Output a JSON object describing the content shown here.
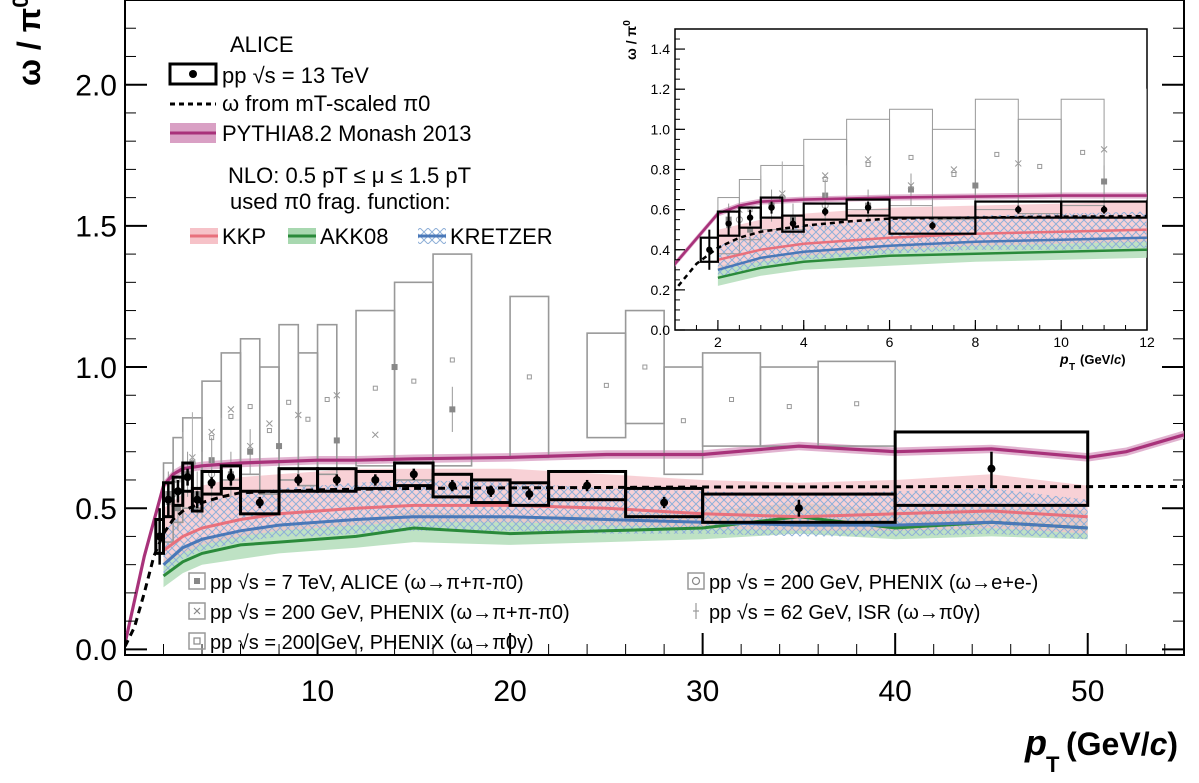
{
  "chart_data": [
    {
      "type": "scatter",
      "title": "",
      "xlabel": "pT (GeV/c)",
      "ylabel": "ω / π0",
      "xlim": [
        0,
        55
      ],
      "ylim": [
        -0.02,
        2.3
      ],
      "x_ticks": [
        "0",
        "10",
        "20",
        "30",
        "40",
        "50"
      ],
      "y_ticks": [
        "0.0",
        "0.5",
        "1.0",
        "1.5",
        "2.0"
      ],
      "experiment": "ALICE",
      "legend_top": {
        "data": "pp √s = 13 TeV",
        "mt_scaled": "ω from mT-scaled π0",
        "pythia": "PYTHIA8.2 Monash 2013",
        "nlo_line1": "NLO: 0.5 pT ≤ μ ≤ 1.5 pT",
        "nlo_line2": "used π0 frag. function:",
        "kkp": "KKP",
        "akk08": "AKK08",
        "kretzer": "KRETZER"
      },
      "legend_bottom": {
        "alice7": "pp √s = 7 TeV, ALICE (ω→π+π-π0)",
        "phenix3pi": "pp √s = 200 GeV, PHENIX (ω→π+π-π0)",
        "phenix_pi0g": "pp √s = 200 GeV, PHENIX (ω→π0γ)",
        "phenix_ee": "pp √s = 200 GeV, PHENIX (ω→e+e-)",
        "isr": "pp √s = 62 GeV, ISR (ω→π0γ)"
      },
      "colors": {
        "data": "#000000",
        "pythia": "#a8327a",
        "pythia_band": "#d9a0c4",
        "kkp": "#e8707c",
        "kkp_band": "#f6c2c8",
        "akk08": "#2a8a3a",
        "akk08_band": "#a8d8b0",
        "kretzer": "#4a78b8",
        "kretzer_hatch": "#8fb0d8",
        "other_data": "#999999",
        "mt_scaled": "#000000"
      },
      "series": [
        {
          "name": "pp √s = 13 TeV",
          "points": [
            {
              "x": 1.8,
              "y": 0.4,
              "xlo": 1.6,
              "xhi": 2.0,
              "ey": 0.1,
              "sy": 0.06
            },
            {
              "x": 2.25,
              "y": 0.53,
              "xlo": 2.0,
              "xhi": 2.5,
              "ey": 0.06,
              "sy": 0.06
            },
            {
              "x": 2.75,
              "y": 0.56,
              "xlo": 2.5,
              "xhi": 3.0,
              "ey": 0.04,
              "sy": 0.05
            },
            {
              "x": 3.25,
              "y": 0.61,
              "xlo": 3.0,
              "xhi": 3.5,
              "ey": 0.03,
              "sy": 0.05
            },
            {
              "x": 3.75,
              "y": 0.53,
              "xlo": 3.5,
              "xhi": 4.0,
              "ey": 0.03,
              "sy": 0.04
            },
            {
              "x": 4.5,
              "y": 0.59,
              "xlo": 4.0,
              "xhi": 5.0,
              "ey": 0.02,
              "sy": 0.04
            },
            {
              "x": 5.5,
              "y": 0.61,
              "xlo": 5.0,
              "xhi": 6.0,
              "ey": 0.03,
              "sy": 0.04
            },
            {
              "x": 7.0,
              "y": 0.52,
              "xlo": 6.0,
              "xhi": 8.0,
              "ey": 0.02,
              "sy": 0.04
            },
            {
              "x": 9.0,
              "y": 0.6,
              "xlo": 8.0,
              "xhi": 10.0,
              "ey": 0.02,
              "sy": 0.04
            },
            {
              "x": 11.0,
              "y": 0.6,
              "xlo": 10.0,
              "xhi": 12.0,
              "ey": 0.02,
              "sy": 0.04
            },
            {
              "x": 13.0,
              "y": 0.6,
              "xlo": 12.0,
              "xhi": 14.0,
              "ey": 0.02,
              "sy": 0.03
            },
            {
              "x": 15.0,
              "y": 0.62,
              "xlo": 14.0,
              "xhi": 16.0,
              "ey": 0.02,
              "sy": 0.04
            },
            {
              "x": 17.0,
              "y": 0.58,
              "xlo": 16.0,
              "xhi": 18.0,
              "ey": 0.02,
              "sy": 0.04
            },
            {
              "x": 19.0,
              "y": 0.56,
              "xlo": 18.0,
              "xhi": 20.0,
              "ey": 0.02,
              "sy": 0.04
            },
            {
              "x": 21.0,
              "y": 0.55,
              "xlo": 20.0,
              "xhi": 22.0,
              "ey": 0.02,
              "sy": 0.04
            },
            {
              "x": 24.0,
              "y": 0.58,
              "xlo": 22.0,
              "xhi": 26.0,
              "ey": 0.02,
              "sy": 0.05
            },
            {
              "x": 28.0,
              "y": 0.52,
              "xlo": 26.0,
              "xhi": 30.0,
              "ey": 0.02,
              "sy": 0.05
            },
            {
              "x": 35.0,
              "y": 0.5,
              "xlo": 30.0,
              "xhi": 40.0,
              "ey": 0.03,
              "sy": 0.05
            },
            {
              "x": 45.0,
              "y": 0.64,
              "xlo": 40.0,
              "xhi": 50.0,
              "ey": 0.06,
              "sy": 0.13
            }
          ]
        },
        {
          "name": "ω from mT-scaled π0",
          "x": [
            0,
            0.5,
            1,
            1.5,
            2,
            2.5,
            3,
            4,
            5,
            6,
            8,
            10,
            15,
            20,
            30,
            40,
            55
          ],
          "y": [
            0.01,
            0.08,
            0.2,
            0.33,
            0.41,
            0.46,
            0.49,
            0.52,
            0.54,
            0.555,
            0.56,
            0.565,
            0.57,
            0.572,
            0.575,
            0.576,
            0.577
          ]
        },
        {
          "name": "PYTHIA8.2 Monash 2013",
          "x": [
            0,
            1,
            2,
            2.5,
            3,
            4,
            5,
            6,
            8,
            10,
            12,
            15,
            20,
            25,
            30,
            35,
            40,
            45,
            50,
            52,
            55
          ],
          "y": [
            0.02,
            0.33,
            0.58,
            0.62,
            0.64,
            0.65,
            0.655,
            0.66,
            0.665,
            0.67,
            0.67,
            0.675,
            0.68,
            0.69,
            0.69,
            0.72,
            0.7,
            0.71,
            0.68,
            0.7,
            0.76
          ],
          "band": 0.015
        },
        {
          "name": "KKP",
          "x": [
            2,
            3,
            4,
            6,
            8,
            10,
            12,
            15,
            20,
            25,
            30,
            35,
            40,
            45,
            50
          ],
          "y": [
            0.35,
            0.4,
            0.43,
            0.46,
            0.48,
            0.49,
            0.5,
            0.51,
            0.51,
            0.5,
            0.48,
            0.47,
            0.48,
            0.49,
            0.47
          ],
          "lo": [
            0.3,
            0.34,
            0.37,
            0.4,
            0.42,
            0.43,
            0.44,
            0.45,
            0.45,
            0.44,
            0.43,
            0.42,
            0.42,
            0.43,
            0.41
          ],
          "hi": [
            0.5,
            0.55,
            0.58,
            0.61,
            0.62,
            0.63,
            0.64,
            0.64,
            0.64,
            0.62,
            0.6,
            0.59,
            0.6,
            0.62,
            0.58
          ]
        },
        {
          "name": "AKK08",
          "x": [
            2,
            3,
            4,
            6,
            8,
            10,
            12,
            15,
            20,
            25,
            30,
            35,
            40,
            45,
            50
          ],
          "y": [
            0.26,
            0.31,
            0.34,
            0.37,
            0.38,
            0.39,
            0.4,
            0.43,
            0.41,
            0.42,
            0.43,
            0.47,
            0.43,
            0.45,
            0.43
          ],
          "lo": [
            0.22,
            0.27,
            0.3,
            0.32,
            0.34,
            0.35,
            0.36,
            0.38,
            0.37,
            0.38,
            0.39,
            0.41,
            0.39,
            0.4,
            0.39
          ],
          "hi": [
            0.32,
            0.36,
            0.39,
            0.42,
            0.44,
            0.45,
            0.46,
            0.49,
            0.47,
            0.48,
            0.49,
            0.52,
            0.49,
            0.5,
            0.49
          ]
        },
        {
          "name": "KRETZER",
          "x": [
            2,
            3,
            4,
            6,
            8,
            10,
            12,
            15,
            20,
            25,
            30,
            35,
            40,
            45,
            50
          ],
          "y": [
            0.3,
            0.36,
            0.39,
            0.42,
            0.44,
            0.45,
            0.46,
            0.47,
            0.47,
            0.46,
            0.45,
            0.44,
            0.44,
            0.45,
            0.43
          ],
          "lo": [
            0.26,
            0.32,
            0.35,
            0.38,
            0.4,
            0.4,
            0.41,
            0.42,
            0.42,
            0.41,
            0.41,
            0.4,
            0.4,
            0.41,
            0.39
          ],
          "hi": [
            0.42,
            0.48,
            0.52,
            0.55,
            0.57,
            0.58,
            0.59,
            0.6,
            0.59,
            0.57,
            0.56,
            0.55,
            0.56,
            0.57,
            0.53
          ]
        },
        {
          "name": "pp √s = 7 TeV, ALICE (ω→π+π-π0)",
          "x": [
            2.25,
            2.75,
            3.25,
            3.75,
            4.5,
            5.5,
            6.5,
            8,
            11,
            14,
            17
          ],
          "y": [
            0.55,
            0.5,
            0.62,
            0.55,
            0.67,
            0.62,
            0.7,
            0.72,
            0.74,
            1.0,
            0.85
          ]
        },
        {
          "name": "pp √s = 200 GeV, PHENIX (ω→π0γ)",
          "boxes": [
            {
              "xlo": 2.0,
              "xhi": 2.5,
              "ylo": 0.38,
              "yhi": 0.66
            },
            {
              "xlo": 2.5,
              "xhi": 3.0,
              "ylo": 0.45,
              "yhi": 0.75
            },
            {
              "xlo": 3.0,
              "xhi": 4.0,
              "ylo": 0.5,
              "yhi": 0.82
            },
            {
              "xlo": 4.0,
              "xhi": 5.0,
              "ylo": 0.55,
              "yhi": 0.95
            },
            {
              "xlo": 5.0,
              "xhi": 6.0,
              "ylo": 0.6,
              "yhi": 1.05
            },
            {
              "xlo": 6.0,
              "xhi": 7.0,
              "ylo": 0.62,
              "yhi": 1.1
            },
            {
              "xlo": 7.0,
              "xhi": 8.0,
              "ylo": 0.55,
              "yhi": 1.0
            },
            {
              "xlo": 8.0,
              "xhi": 9.0,
              "ylo": 0.6,
              "yhi": 1.15
            },
            {
              "xlo": 9.0,
              "xhi": 10.0,
              "ylo": 0.58,
              "yhi": 1.05
            },
            {
              "xlo": 10.0,
              "xhi": 11.0,
              "ylo": 0.62,
              "yhi": 1.15
            },
            {
              "xlo": 12.0,
              "xhi": 14.0,
              "ylo": 0.65,
              "yhi": 1.2
            },
            {
              "xlo": 14.0,
              "xhi": 16.0,
              "ylo": 0.6,
              "yhi": 1.3
            },
            {
              "xlo": 16.0,
              "xhi": 18.0,
              "ylo": 0.65,
              "yhi": 1.4
            },
            {
              "xlo": 20.0,
              "xhi": 22.0,
              "ylo": 0.68,
              "yhi": 1.25
            },
            {
              "xlo": 24.0,
              "xhi": 26.0,
              "ylo": 0.75,
              "yhi": 1.12
            },
            {
              "xlo": 26.0,
              "xhi": 28.0,
              "ylo": 0.8,
              "yhi": 1.2
            },
            {
              "xlo": 28.0,
              "xhi": 30.0,
              "ylo": 0.62,
              "yhi": 1.0
            },
            {
              "xlo": 30.0,
              "xhi": 33.0,
              "ylo": 0.72,
              "yhi": 1.05
            },
            {
              "xlo": 33.0,
              "xhi": 36.0,
              "ylo": 0.72,
              "yhi": 1.0
            },
            {
              "xlo": 36.0,
              "xhi": 40.0,
              "ylo": 0.72,
              "yhi": 1.02
            }
          ]
        },
        {
          "name": "pp √s = 200 GeV, PHENIX (ω→π+π-π0)",
          "x": [
            2.5,
            3.5,
            4.5,
            5.5,
            6.5,
            7.5,
            9,
            11,
            13
          ],
          "y": [
            0.6,
            0.68,
            0.77,
            0.85,
            0.72,
            0.8,
            0.83,
            0.9,
            0.76
          ]
        },
        {
          "name": "pp √s = 200 GeV, PHENIX (ω→e+e-)",
          "x": [
            2.5,
            3.5,
            4.5
          ],
          "y": [
            0.55,
            0.66,
            0.62
          ]
        },
        {
          "name": "pp √s = 62 GeV, ISR (ω→π0γ)",
          "x": [
            3.0,
            3.5,
            4.0,
            4.5,
            5.0
          ],
          "y": [
            0.65,
            0.72,
            0.58,
            0.62,
            0.7
          ]
        }
      ]
    },
    {
      "type": "scatter",
      "title": "",
      "xlabel": "pT (GeV/c)",
      "ylabel": "ω / π0",
      "xlim": [
        1,
        12
      ],
      "ylim": [
        0,
        1.5
      ],
      "x_ticks": [
        "2",
        "4",
        "6",
        "8",
        "10",
        "12"
      ],
      "y_ticks": [
        "0.0",
        "0.2",
        "0.4",
        "0.6",
        "0.8",
        "1.0",
        "1.2",
        "1.4"
      ]
    }
  ]
}
